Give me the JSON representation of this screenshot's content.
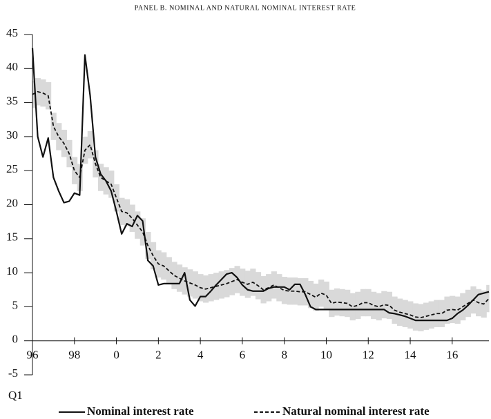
{
  "chart_data": {
    "type": "line",
    "title": "PANEL B. NOMINAL AND NATURAL NOMINAL INTEREST RATE",
    "x_note": "Q1",
    "x": [
      1996,
      1996.25,
      1996.5,
      1996.75,
      1997,
      1997.25,
      1997.5,
      1997.75,
      1998,
      1998.25,
      1998.5,
      1998.75,
      1999,
      1999.25,
      1999.5,
      1999.75,
      2000,
      2000.25,
      2000.5,
      2000.75,
      2001,
      2001.25,
      2001.5,
      2001.75,
      2002,
      2002.25,
      2002.5,
      2002.75,
      2003,
      2003.25,
      2003.5,
      2003.75,
      2004,
      2004.25,
      2004.5,
      2004.75,
      2005,
      2005.25,
      2005.5,
      2005.75,
      2006,
      2006.25,
      2006.5,
      2006.75,
      2007,
      2007.25,
      2007.5,
      2007.75,
      2008,
      2008.25,
      2008.5,
      2008.75,
      2009,
      2009.25,
      2009.5,
      2009.75,
      2010,
      2010.25,
      2010.5,
      2010.75,
      2011,
      2011.25,
      2011.5,
      2011.75,
      2012,
      2012.25,
      2012.5,
      2012.75,
      2013,
      2013.25,
      2013.5,
      2013.75,
      2014,
      2014.25,
      2014.5,
      2014.75,
      2015,
      2015.25,
      2015.5,
      2015.75,
      2016,
      2016.25,
      2016.5,
      2016.75,
      2017,
      2017.25,
      2017.5,
      2017.75
    ],
    "series": [
      {
        "name": "Nominal interest rate",
        "color": "#111111",
        "style": "solid",
        "values": [
          43,
          30,
          27,
          29.8,
          24,
          22,
          20.3,
          20.5,
          21.7,
          21.4,
          42,
          36,
          27,
          24.5,
          23.5,
          22,
          19,
          15.7,
          17.2,
          16.8,
          18.4,
          17.6,
          11.8,
          11,
          8.2,
          8.4,
          8.4,
          8.4,
          8.4,
          10,
          6,
          5.1,
          6.5,
          6.5,
          7.3,
          8.2,
          9,
          9.8,
          10,
          9.3,
          8.2,
          7.5,
          7.3,
          7.3,
          7.3,
          7.7,
          7.9,
          7.9,
          7.9,
          7.5,
          8.3,
          8.3,
          6.8,
          5,
          4.6,
          4.6,
          4.6,
          4.6,
          4.6,
          4.6,
          4.6,
          4.6,
          4.6,
          4.6,
          4.6,
          4.6,
          4.6,
          4.6,
          4.1,
          4,
          3.8,
          3.6,
          3.3,
          3,
          3,
          3,
          3,
          3,
          3,
          3,
          3.3,
          4,
          4.5,
          5.2,
          6,
          6.8,
          7,
          7.2
        ]
      },
      {
        "name": "Natural nominal interest rate",
        "color": "#111111",
        "style": "dashed",
        "values": [
          36.2,
          36.6,
          36.4,
          36,
          31.5,
          30,
          29,
          27.5,
          25,
          24,
          28,
          28.8,
          26,
          24,
          23.5,
          23,
          21,
          19,
          18.8,
          18,
          17,
          16,
          14,
          12.5,
          11.3,
          11,
          10.3,
          9.6,
          9.2,
          8.8,
          8.5,
          8.2,
          7.8,
          7.6,
          7.8,
          8,
          8.2,
          8.4,
          8.7,
          9,
          8.6,
          8.3,
          8.6,
          8.1,
          7.5,
          7.8,
          8.2,
          7.8,
          7.4,
          7.3,
          7.3,
          7.2,
          7.2,
          6.8,
          6.4,
          7,
          6.7,
          5.5,
          5.7,
          5.6,
          5.5,
          5,
          5.2,
          5.6,
          5.6,
          5.2,
          5,
          5.3,
          5.2,
          4.5,
          4.2,
          4,
          3.8,
          3.5,
          3.4,
          3.6,
          3.8,
          4,
          4,
          4.5,
          4.6,
          4.5,
          5,
          5.5,
          6,
          5.6,
          5.4,
          6.2
        ]
      }
    ],
    "band": {
      "color": "#d9d9d9",
      "lower": [
        34.2,
        34.6,
        34.4,
        34,
        29.5,
        28,
        27,
        25.5,
        23,
        22,
        26,
        26.8,
        24,
        22,
        21.5,
        21,
        19,
        17,
        16.8,
        16,
        15,
        14,
        12,
        10.5,
        9.3,
        9,
        8.3,
        7.6,
        7.2,
        6.8,
        6.5,
        6.2,
        5.8,
        5.6,
        5.8,
        6,
        6.2,
        6.4,
        6.7,
        7,
        6.6,
        6.3,
        6.6,
        6.1,
        5.5,
        5.8,
        6.2,
        5.8,
        5.4,
        5.3,
        5.3,
        5.2,
        5.2,
        4.8,
        4.4,
        5,
        4.7,
        3.5,
        3.7,
        3.6,
        3.5,
        3,
        3.2,
        3.6,
        3.6,
        3.2,
        3,
        3.3,
        3.2,
        2.5,
        2.2,
        2,
        1.8,
        1.5,
        1.4,
        1.6,
        1.8,
        2,
        2,
        2.5,
        2.6,
        2.5,
        3,
        3.5,
        4,
        3.6,
        3.4,
        4.2
      ],
      "upper": [
        38.2,
        38.6,
        38.4,
        38,
        33.5,
        32,
        31,
        29.5,
        27,
        26,
        30,
        30.8,
        28,
        26,
        25.5,
        25,
        23,
        21,
        20.8,
        20,
        19,
        18,
        16,
        14.5,
        13.3,
        13,
        12.3,
        11.6,
        11.2,
        10.8,
        10.5,
        10.2,
        9.8,
        9.6,
        9.8,
        10,
        10.2,
        10.4,
        10.7,
        11,
        10.6,
        10.3,
        10.6,
        10.1,
        9.5,
        9.8,
        10.2,
        9.8,
        9.4,
        9.3,
        9.3,
        9.2,
        9.2,
        8.8,
        8.4,
        9,
        8.7,
        7.5,
        7.7,
        7.6,
        7.5,
        7,
        7.2,
        7.6,
        7.6,
        7.2,
        7,
        7.3,
        7.2,
        6.5,
        6.2,
        6,
        5.8,
        5.5,
        5.4,
        5.6,
        5.8,
        6,
        6,
        6.5,
        6.6,
        6.5,
        7,
        7.5,
        8,
        7.6,
        7.4,
        8.2
      ]
    },
    "xlim": [
      1996,
      2017.75
    ],
    "xticks": [
      {
        "value": 1996,
        "label": "96"
      },
      {
        "value": 1998,
        "label": "98"
      },
      {
        "value": 2000,
        "label": "0"
      },
      {
        "value": 2002,
        "label": "2"
      },
      {
        "value": 2004,
        "label": "4"
      },
      {
        "value": 2006,
        "label": "6"
      },
      {
        "value": 2008,
        "label": "8"
      },
      {
        "value": 2010,
        "label": "10"
      },
      {
        "value": 2012,
        "label": "12"
      },
      {
        "value": 2014,
        "label": "14"
      },
      {
        "value": 2016,
        "label": "16"
      }
    ],
    "ylim": [
      -5,
      45
    ],
    "yticks": [
      45,
      40,
      35,
      30,
      25,
      20,
      15,
      10,
      5,
      0,
      -5
    ],
    "grid": false
  }
}
